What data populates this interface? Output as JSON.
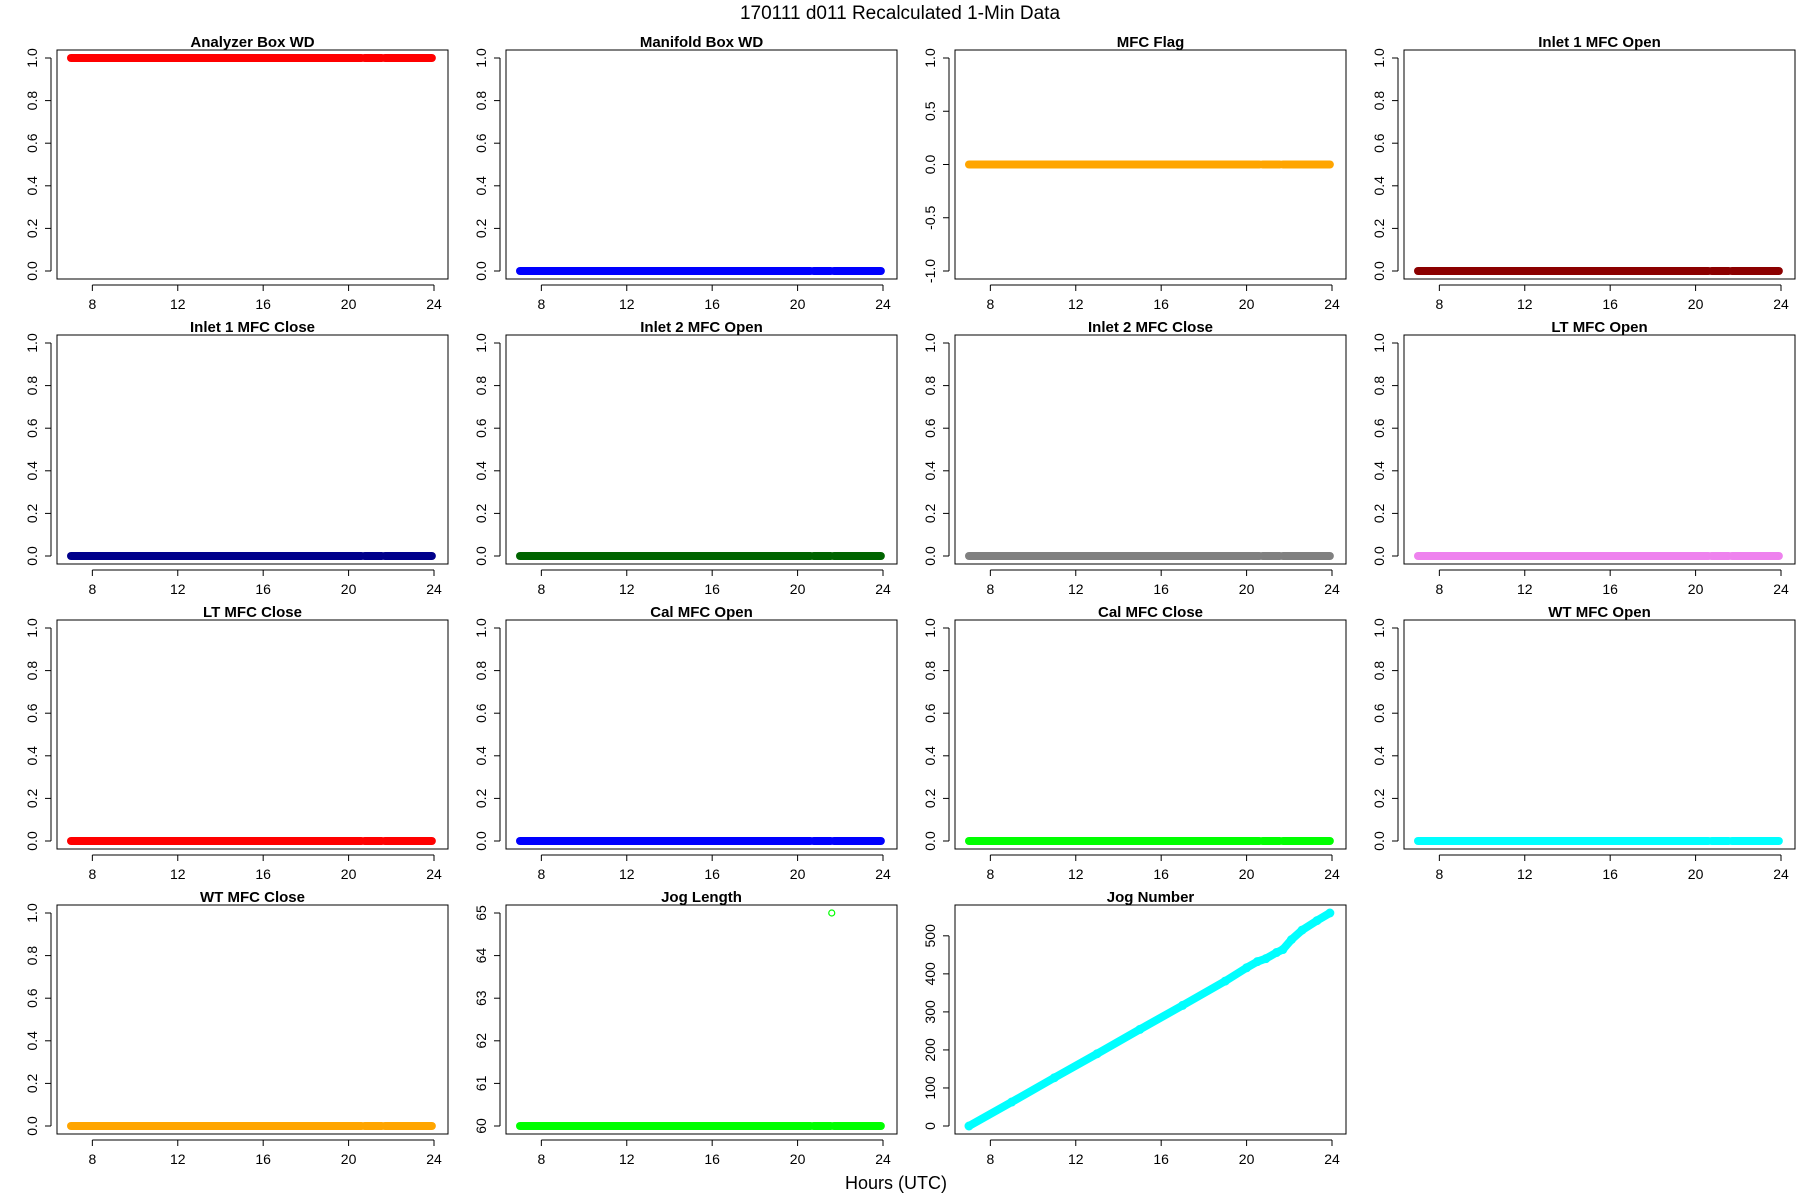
{
  "figure": {
    "title": "170111   d011   Recalculated 1-Min Data",
    "xlabel": "Hours (UTC)"
  },
  "chart_data": [
    {
      "type": "scatter",
      "title": "Analyzer Box WD",
      "color": "#ff0000",
      "shape": "constant",
      "value": 1,
      "ylim": [
        0,
        1
      ],
      "yticks": [
        "0.0",
        "0.2",
        "0.4",
        "0.6",
        "0.8",
        "1.0"
      ],
      "xlim": [
        7,
        24
      ],
      "xticks": [
        "8",
        "12",
        "16",
        "20",
        "24"
      ],
      "gaps": [
        [
          20.6,
          20.75
        ],
        [
          21.55,
          21.7
        ]
      ]
    },
    {
      "type": "scatter",
      "title": "Manifold Box WD",
      "color": "#0000ff",
      "shape": "constant",
      "value": 0,
      "ylim": [
        0,
        1
      ],
      "yticks": [
        "0.0",
        "0.2",
        "0.4",
        "0.6",
        "0.8",
        "1.0"
      ],
      "xlim": [
        7,
        24
      ],
      "xticks": [
        "8",
        "12",
        "16",
        "20",
        "24"
      ],
      "gaps": [
        [
          20.6,
          20.75
        ],
        [
          21.55,
          21.7
        ]
      ]
    },
    {
      "type": "scatter",
      "title": "MFC Flag",
      "color": "#ffa500",
      "shape": "constant",
      "value": 0,
      "ylim": [
        -1,
        1
      ],
      "yticks": [
        "-1.0",
        "-0.5",
        "0.0",
        "0.5",
        "1.0"
      ],
      "xlim": [
        7,
        24
      ],
      "xticks": [
        "8",
        "12",
        "16",
        "20",
        "24"
      ],
      "gaps": [
        [
          20.6,
          20.75
        ],
        [
          21.55,
          21.7
        ]
      ]
    },
    {
      "type": "scatter",
      "title": "Inlet 1 MFC Open",
      "color": "#8b0000",
      "shape": "constant",
      "value": 0,
      "ylim": [
        0,
        1
      ],
      "yticks": [
        "0.0",
        "0.2",
        "0.4",
        "0.6",
        "0.8",
        "1.0"
      ],
      "xlim": [
        7,
        24
      ],
      "xticks": [
        "8",
        "12",
        "16",
        "20",
        "24"
      ],
      "gaps": [
        [
          20.6,
          20.75
        ],
        [
          21.55,
          21.7
        ]
      ]
    },
    {
      "type": "scatter",
      "title": "Inlet 1 MFC Close",
      "color": "#00008b",
      "shape": "constant",
      "value": 0,
      "ylim": [
        0,
        1
      ],
      "yticks": [
        "0.0",
        "0.2",
        "0.4",
        "0.6",
        "0.8",
        "1.0"
      ],
      "xlim": [
        7,
        24
      ],
      "xticks": [
        "8",
        "12",
        "16",
        "20",
        "24"
      ],
      "gaps": [
        [
          20.6,
          20.75
        ],
        [
          21.55,
          21.7
        ]
      ]
    },
    {
      "type": "scatter",
      "title": "Inlet 2 MFC Open",
      "color": "#006400",
      "shape": "constant",
      "value": 0,
      "ylim": [
        0,
        1
      ],
      "yticks": [
        "0.0",
        "0.2",
        "0.4",
        "0.6",
        "0.8",
        "1.0"
      ],
      "xlim": [
        7,
        24
      ],
      "xticks": [
        "8",
        "12",
        "16",
        "20",
        "24"
      ],
      "gaps": [
        [
          20.6,
          20.75
        ],
        [
          21.55,
          21.7
        ]
      ]
    },
    {
      "type": "scatter",
      "title": "Inlet 2 MFC Close",
      "color": "#808080",
      "shape": "constant",
      "value": 0,
      "ylim": [
        0,
        1
      ],
      "yticks": [
        "0.0",
        "0.2",
        "0.4",
        "0.6",
        "0.8",
        "1.0"
      ],
      "xlim": [
        7,
        24
      ],
      "xticks": [
        "8",
        "12",
        "16",
        "20",
        "24"
      ],
      "gaps": [
        [
          20.6,
          20.75
        ],
        [
          21.55,
          21.7
        ]
      ]
    },
    {
      "type": "scatter",
      "title": "LT MFC Open",
      "color": "#ee82ee",
      "shape": "constant",
      "value": 0,
      "ylim": [
        0,
        1
      ],
      "yticks": [
        "0.0",
        "0.2",
        "0.4",
        "0.6",
        "0.8",
        "1.0"
      ],
      "xlim": [
        7,
        24
      ],
      "xticks": [
        "8",
        "12",
        "16",
        "20",
        "24"
      ],
      "gaps": [
        [
          20.6,
          20.75
        ],
        [
          21.55,
          21.7
        ]
      ]
    },
    {
      "type": "scatter",
      "title": "LT MFC Close",
      "color": "#ff0000",
      "shape": "constant",
      "value": 0,
      "ylim": [
        0,
        1
      ],
      "yticks": [
        "0.0",
        "0.2",
        "0.4",
        "0.6",
        "0.8",
        "1.0"
      ],
      "xlim": [
        7,
        24
      ],
      "xticks": [
        "8",
        "12",
        "16",
        "20",
        "24"
      ],
      "gaps": [
        [
          20.6,
          20.75
        ],
        [
          21.55,
          21.7
        ]
      ]
    },
    {
      "type": "scatter",
      "title": "Cal MFC Open",
      "color": "#0000ff",
      "shape": "constant",
      "value": 0,
      "ylim": [
        0,
        1
      ],
      "yticks": [
        "0.0",
        "0.2",
        "0.4",
        "0.6",
        "0.8",
        "1.0"
      ],
      "xlim": [
        7,
        24
      ],
      "xticks": [
        "8",
        "12",
        "16",
        "20",
        "24"
      ],
      "gaps": [
        [
          20.6,
          20.75
        ],
        [
          21.55,
          21.7
        ]
      ]
    },
    {
      "type": "scatter",
      "title": "Cal MFC Close",
      "color": "#00ff00",
      "shape": "constant",
      "value": 0,
      "ylim": [
        0,
        1
      ],
      "yticks": [
        "0.0",
        "0.2",
        "0.4",
        "0.6",
        "0.8",
        "1.0"
      ],
      "xlim": [
        7,
        24
      ],
      "xticks": [
        "8",
        "12",
        "16",
        "20",
        "24"
      ],
      "gaps": [
        [
          20.6,
          20.75
        ],
        [
          21.55,
          21.7
        ]
      ]
    },
    {
      "type": "scatter",
      "title": "WT MFC Open",
      "color": "#00ffff",
      "shape": "constant",
      "value": 0,
      "ylim": [
        0,
        1
      ],
      "yticks": [
        "0.0",
        "0.2",
        "0.4",
        "0.6",
        "0.8",
        "1.0"
      ],
      "xlim": [
        7,
        24
      ],
      "xticks": [
        "8",
        "12",
        "16",
        "20",
        "24"
      ],
      "gaps": [
        [
          20.6,
          20.75
        ],
        [
          21.55,
          21.7
        ]
      ]
    },
    {
      "type": "scatter",
      "title": "WT MFC Close",
      "color": "#ffa500",
      "shape": "constant",
      "value": 0,
      "ylim": [
        0,
        1
      ],
      "yticks": [
        "0.0",
        "0.2",
        "0.4",
        "0.6",
        "0.8",
        "1.0"
      ],
      "xlim": [
        7,
        24
      ],
      "xticks": [
        "8",
        "12",
        "16",
        "20",
        "24"
      ],
      "gaps": [
        [
          20.6,
          20.75
        ],
        [
          21.55,
          21.7
        ]
      ]
    },
    {
      "type": "scatter",
      "title": "Jog Length",
      "color": "#00ff00",
      "shape": "constant",
      "value": 60,
      "outliers": [
        [
          21.6,
          65
        ]
      ],
      "ylim": [
        60,
        65
      ],
      "yticks": [
        "60",
        "61",
        "62",
        "63",
        "64",
        "65"
      ],
      "xlim": [
        7,
        24
      ],
      "xticks": [
        "8",
        "12",
        "16",
        "20",
        "24"
      ],
      "gaps": [
        [
          20.6,
          20.75
        ],
        [
          21.55,
          21.7
        ]
      ]
    },
    {
      "type": "scatter",
      "title": "Jog Number",
      "color": "#00ffff",
      "shape": "series",
      "x": [
        7.0,
        9.0,
        11.0,
        13.0,
        15.0,
        17.0,
        19.0,
        20.0,
        20.5,
        20.9,
        21.4,
        21.7,
        22.1,
        22.6,
        23.3,
        23.9
      ],
      "y": [
        0,
        63,
        127,
        190,
        254,
        317,
        381,
        416,
        432,
        440,
        456,
        464,
        490,
        515,
        540,
        560
      ],
      "ylim": [
        0,
        560
      ],
      "yticks": [
        "0",
        "100",
        "200",
        "300",
        "400",
        "500"
      ],
      "ytick_values": [
        0,
        100,
        200,
        300,
        400,
        500
      ],
      "xlim": [
        7,
        24
      ],
      "xticks": [
        "8",
        "12",
        "16",
        "20",
        "24"
      ]
    }
  ]
}
